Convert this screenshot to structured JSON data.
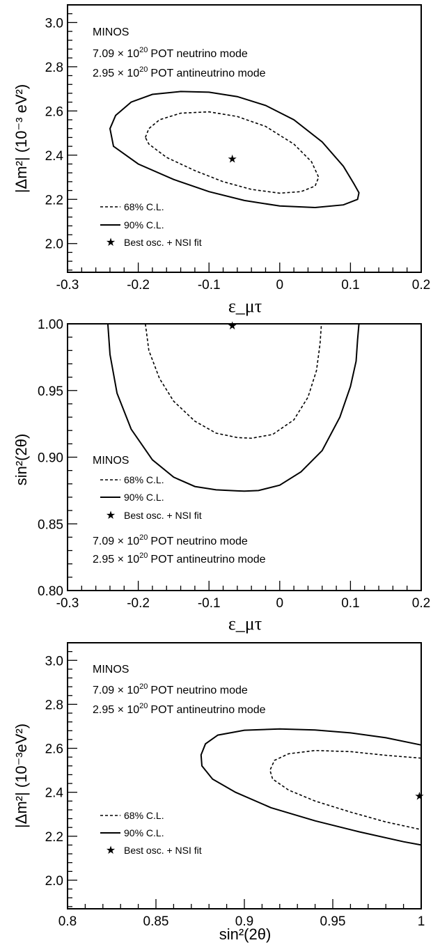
{
  "figure": {
    "experiment_label": "MINOS",
    "exposure_lines": [
      {
        "value": "7.09",
        "exp": "20",
        "rest": "POT neutrino mode"
      },
      {
        "value": "2.95",
        "exp": "20",
        "rest": "POT antineutrino mode"
      }
    ],
    "legend": {
      "cl68": "68% C.L.",
      "cl90": "90% C.L.",
      "best": "Best osc. + NSI fit"
    }
  },
  "chart_data": [
    {
      "type": "line",
      "panel": "top",
      "xlabel": "ε_μτ",
      "ylabel": "|Δm²| (10⁻³ eV²)",
      "xlim": [
        -0.3,
        0.2
      ],
      "ylim": [
        1.87,
        3.08
      ],
      "xticks": [
        -0.3,
        -0.2,
        -0.1,
        0,
        0.1,
        0.2
      ],
      "xticklabels": [
        "-0.3",
        "-0.2",
        "-0.1",
        "0",
        "0.1",
        "0.2"
      ],
      "yticks": [
        2.0,
        2.2,
        2.4,
        2.6,
        2.8,
        3.0
      ],
      "yticklabels": [
        "2.0",
        "2.2",
        "2.4",
        "2.6",
        "2.8",
        "3.0"
      ],
      "series": [
        {
          "name": "90% C.L.",
          "style": "solid",
          "closed": true,
          "x": [
            -0.24,
            -0.232,
            -0.21,
            -0.18,
            -0.14,
            -0.1,
            -0.06,
            -0.02,
            0.02,
            0.06,
            0.09,
            0.105,
            0.112,
            0.11,
            0.09,
            0.05,
            0.0,
            -0.05,
            -0.1,
            -0.15,
            -0.2,
            -0.235,
            -0.24
          ],
          "y": [
            2.52,
            2.58,
            2.64,
            2.675,
            2.688,
            2.685,
            2.665,
            2.625,
            2.56,
            2.46,
            2.35,
            2.27,
            2.23,
            2.2,
            2.175,
            2.163,
            2.17,
            2.195,
            2.235,
            2.29,
            2.36,
            2.44,
            2.52
          ]
        },
        {
          "name": "68% C.L.",
          "style": "dashed",
          "closed": true,
          "x": [
            -0.19,
            -0.185,
            -0.17,
            -0.14,
            -0.1,
            -0.06,
            -0.02,
            0.02,
            0.045,
            0.055,
            0.05,
            0.03,
            0.0,
            -0.04,
            -0.08,
            -0.12,
            -0.16,
            -0.185,
            -0.19
          ],
          "y": [
            2.48,
            2.52,
            2.56,
            2.59,
            2.596,
            2.575,
            2.53,
            2.45,
            2.37,
            2.3,
            2.26,
            2.235,
            2.228,
            2.245,
            2.28,
            2.33,
            2.39,
            2.45,
            2.48
          ]
        }
      ],
      "best_fit": {
        "x": -0.067,
        "y": 2.385
      },
      "text_block": "top-left",
      "legend_position": "bottom-left"
    },
    {
      "type": "line",
      "panel": "middle",
      "xlabel": "ε_μτ",
      "ylabel": "sin²(2θ)",
      "xlim": [
        -0.3,
        0.2
      ],
      "ylim": [
        0.8,
        1.0
      ],
      "xticks": [
        -0.3,
        -0.2,
        -0.1,
        0,
        0.1,
        0.2
      ],
      "xticklabels": [
        "-0.3",
        "-0.2",
        "-0.1",
        "0",
        "0.1",
        "0.2"
      ],
      "yticks": [
        0.8,
        0.85,
        0.9,
        0.95,
        1.0
      ],
      "yticklabels": [
        "0.80",
        "0.85",
        "0.90",
        "0.95",
        "1.00"
      ],
      "series": [
        {
          "name": "90% C.L.",
          "style": "solid",
          "closed": false,
          "x": [
            -0.243,
            -0.24,
            -0.23,
            -0.21,
            -0.18,
            -0.15,
            -0.12,
            -0.09,
            -0.06,
            -0.05,
            -0.03,
            0.0,
            0.03,
            0.06,
            0.085,
            0.1,
            0.108,
            0.11,
            0.112
          ],
          "y": [
            1.0,
            0.977,
            0.948,
            0.921,
            0.898,
            0.885,
            0.878,
            0.8755,
            0.8747,
            0.8745,
            0.875,
            0.879,
            0.889,
            0.905,
            0.93,
            0.953,
            0.972,
            0.988,
            1.0
          ]
        },
        {
          "name": "68% C.L.",
          "style": "dashed",
          "closed": false,
          "x": [
            -0.19,
            -0.185,
            -0.17,
            -0.15,
            -0.12,
            -0.09,
            -0.06,
            -0.04,
            -0.01,
            0.02,
            0.04,
            0.052,
            0.057,
            0.059
          ],
          "y": [
            1.0,
            0.98,
            0.959,
            0.942,
            0.927,
            0.918,
            0.9147,
            0.9142,
            0.917,
            0.928,
            0.945,
            0.965,
            0.985,
            1.0
          ]
        }
      ],
      "best_fit": {
        "x": -0.067,
        "y": 0.999
      },
      "text_block": "bottom-left",
      "legend_position": "left"
    },
    {
      "type": "line",
      "panel": "bottom",
      "xlabel": "sin²(2θ)",
      "ylabel": "|Δm²| (10⁻³eV²)",
      "xlim": [
        0.8,
        1.0
      ],
      "ylim": [
        1.87,
        3.08
      ],
      "xticks": [
        0.8,
        0.85,
        0.9,
        0.95,
        1.0
      ],
      "xticklabels": [
        "0.8",
        "0.85",
        "0.9",
        "0.95",
        "1"
      ],
      "yticks": [
        2.0,
        2.2,
        2.4,
        2.6,
        2.8,
        3.0
      ],
      "yticklabels": [
        "2.0",
        "2.2",
        "2.4",
        "2.6",
        "2.8",
        "3.0"
      ],
      "series": [
        {
          "name": "90% C.L.",
          "style": "solid",
          "closed": false,
          "x": [
            1.0,
            0.98,
            0.96,
            0.94,
            0.92,
            0.9,
            0.885,
            0.878,
            0.8755,
            0.876,
            0.882,
            0.895,
            0.915,
            0.94,
            0.965,
            0.99,
            1.0
          ],
          "y": [
            2.615,
            2.648,
            2.67,
            2.683,
            2.688,
            2.682,
            2.66,
            2.62,
            2.57,
            2.52,
            2.46,
            2.4,
            2.33,
            2.27,
            2.22,
            2.175,
            2.16
          ]
        },
        {
          "name": "68% C.L.",
          "style": "dashed",
          "closed": false,
          "x": [
            1.0,
            0.98,
            0.96,
            0.94,
            0.925,
            0.917,
            0.9145,
            0.916,
            0.925,
            0.94,
            0.96,
            0.98,
            1.0
          ],
          "y": [
            2.555,
            2.568,
            2.585,
            2.59,
            2.575,
            2.545,
            2.5,
            2.46,
            2.41,
            2.36,
            2.31,
            2.265,
            2.23
          ]
        }
      ],
      "best_fit": {
        "x": 0.999,
        "y": 2.385
      },
      "text_block": "top-left",
      "legend_position": "left"
    }
  ]
}
